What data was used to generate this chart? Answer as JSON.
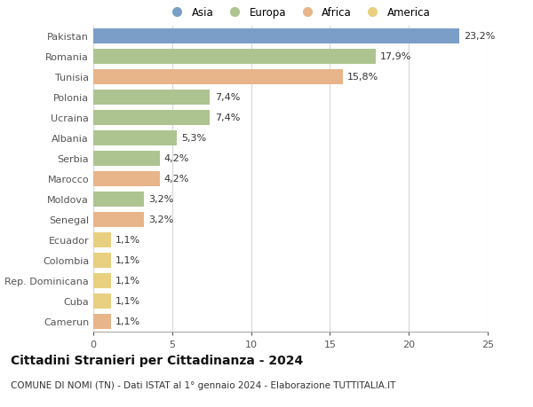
{
  "countries": [
    "Pakistan",
    "Romania",
    "Tunisia",
    "Polonia",
    "Ucraina",
    "Albania",
    "Serbia",
    "Marocco",
    "Moldova",
    "Senegal",
    "Ecuador",
    "Colombia",
    "Rep. Dominicana",
    "Cuba",
    "Camerun"
  ],
  "values": [
    23.2,
    17.9,
    15.8,
    7.4,
    7.4,
    5.3,
    4.2,
    4.2,
    3.2,
    3.2,
    1.1,
    1.1,
    1.1,
    1.1,
    1.1
  ],
  "labels": [
    "23,2%",
    "17,9%",
    "15,8%",
    "7,4%",
    "7,4%",
    "5,3%",
    "4,2%",
    "4,2%",
    "3,2%",
    "3,2%",
    "1,1%",
    "1,1%",
    "1,1%",
    "1,1%",
    "1,1%"
  ],
  "continents": [
    "Asia",
    "Europa",
    "Africa",
    "Europa",
    "Europa",
    "Europa",
    "Europa",
    "Africa",
    "Europa",
    "Africa",
    "America",
    "America",
    "America",
    "America",
    "Africa"
  ],
  "colors": {
    "Asia": "#7b9ec9",
    "Europa": "#adc490",
    "Africa": "#e8b48a",
    "America": "#e8d080"
  },
  "legend_order": [
    "Asia",
    "Europa",
    "Africa",
    "America"
  ],
  "title": "Cittadini Stranieri per Cittadinanza - 2024",
  "subtitle": "COMUNE DI NOMI (TN) - Dati ISTAT al 1° gennaio 2024 - Elaborazione TUTTITALIA.IT",
  "xlim": [
    0,
    25
  ],
  "xticks": [
    0,
    5,
    10,
    15,
    20,
    25
  ],
  "bg_color": "#ffffff",
  "grid_color": "#d8d8d8",
  "title_fontsize": 10,
  "subtitle_fontsize": 7.5,
  "bar_height": 0.72,
  "label_fontsize": 8,
  "ytick_fontsize": 8,
  "xtick_fontsize": 8
}
